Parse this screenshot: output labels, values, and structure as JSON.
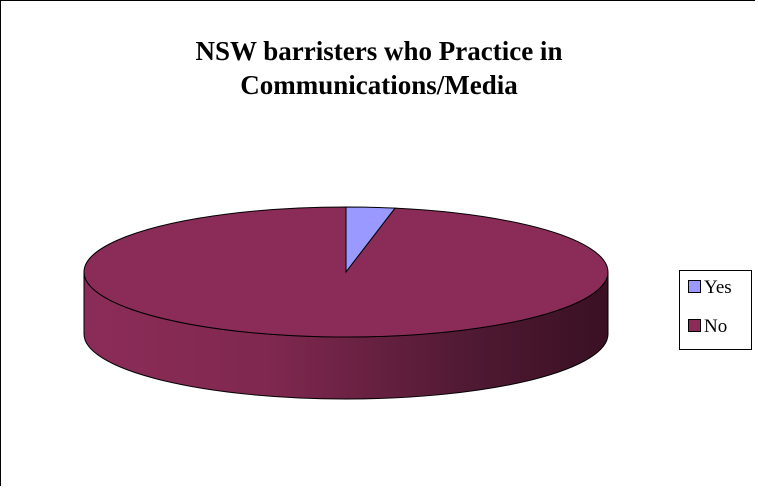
{
  "chart_data": {
    "type": "pie",
    "title_lines": [
      "NSW barristers who Practice in",
      "Communications/Media"
    ],
    "categories": [
      "Yes",
      "No"
    ],
    "values": [
      3,
      97
    ],
    "colors": [
      "#9999FF",
      "#8B2C58"
    ],
    "legend_position": "right",
    "style": "3d"
  }
}
